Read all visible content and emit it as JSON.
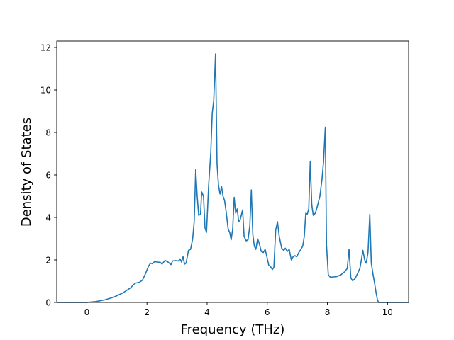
{
  "chart_data": {
    "type": "line",
    "title": "",
    "xlabel": "Frequency (THz)",
    "ylabel": "Density of States",
    "xlim": [
      -1.0,
      10.7
    ],
    "ylim": [
      0,
      12.3
    ],
    "xticks": [
      0,
      2,
      4,
      6,
      8,
      10
    ],
    "yticks": [
      0,
      2,
      4,
      6,
      8,
      10,
      12
    ],
    "grid": false,
    "legend": "none",
    "series": [
      {
        "name": "",
        "color": "#1f77b4",
        "points": [
          [
            -1.0,
            0.0
          ],
          [
            -0.5,
            0.0
          ],
          [
            0.0,
            0.0
          ],
          [
            0.3,
            0.04
          ],
          [
            0.6,
            0.12
          ],
          [
            0.9,
            0.25
          ],
          [
            1.2,
            0.45
          ],
          [
            1.45,
            0.68
          ],
          [
            1.6,
            0.9
          ],
          [
            1.75,
            0.95
          ],
          [
            1.85,
            1.05
          ],
          [
            1.95,
            1.35
          ],
          [
            2.05,
            1.7
          ],
          [
            2.12,
            1.85
          ],
          [
            2.18,
            1.82
          ],
          [
            2.25,
            1.92
          ],
          [
            2.35,
            1.9
          ],
          [
            2.45,
            1.88
          ],
          [
            2.5,
            1.8
          ],
          [
            2.6,
            1.98
          ],
          [
            2.7,
            1.9
          ],
          [
            2.8,
            1.78
          ],
          [
            2.85,
            1.95
          ],
          [
            2.95,
            1.97
          ],
          [
            3.05,
            1.95
          ],
          [
            3.1,
            2.05
          ],
          [
            3.15,
            1.9
          ],
          [
            3.2,
            2.15
          ],
          [
            3.25,
            1.8
          ],
          [
            3.3,
            1.85
          ],
          [
            3.38,
            2.45
          ],
          [
            3.45,
            2.5
          ],
          [
            3.52,
            3.0
          ],
          [
            3.57,
            3.8
          ],
          [
            3.62,
            6.25
          ],
          [
            3.67,
            5.0
          ],
          [
            3.72,
            4.1
          ],
          [
            3.78,
            4.15
          ],
          [
            3.82,
            5.2
          ],
          [
            3.88,
            5.0
          ],
          [
            3.93,
            3.5
          ],
          [
            3.98,
            3.3
          ],
          [
            4.05,
            5.5
          ],
          [
            4.12,
            7.0
          ],
          [
            4.17,
            8.9
          ],
          [
            4.22,
            9.5
          ],
          [
            4.28,
            11.7
          ],
          [
            4.33,
            6.5
          ],
          [
            4.38,
            5.5
          ],
          [
            4.43,
            5.1
          ],
          [
            4.48,
            5.45
          ],
          [
            4.53,
            5.0
          ],
          [
            4.58,
            4.8
          ],
          [
            4.63,
            4.3
          ],
          [
            4.7,
            3.45
          ],
          [
            4.75,
            3.3
          ],
          [
            4.8,
            2.95
          ],
          [
            4.85,
            3.45
          ],
          [
            4.9,
            4.95
          ],
          [
            4.95,
            4.2
          ],
          [
            5.0,
            4.4
          ],
          [
            5.05,
            3.8
          ],
          [
            5.1,
            3.9
          ],
          [
            5.18,
            4.35
          ],
          [
            5.23,
            3.1
          ],
          [
            5.3,
            2.9
          ],
          [
            5.36,
            2.95
          ],
          [
            5.42,
            3.6
          ],
          [
            5.47,
            5.3
          ],
          [
            5.52,
            3.2
          ],
          [
            5.57,
            2.65
          ],
          [
            5.62,
            2.5
          ],
          [
            5.68,
            3.0
          ],
          [
            5.73,
            2.8
          ],
          [
            5.8,
            2.4
          ],
          [
            5.87,
            2.35
          ],
          [
            5.93,
            2.5
          ],
          [
            5.98,
            2.2
          ],
          [
            6.05,
            1.75
          ],
          [
            6.1,
            1.7
          ],
          [
            6.17,
            1.55
          ],
          [
            6.22,
            1.65
          ],
          [
            6.28,
            3.4
          ],
          [
            6.34,
            3.8
          ],
          [
            6.4,
            3.1
          ],
          [
            6.48,
            2.55
          ],
          [
            6.55,
            2.45
          ],
          [
            6.6,
            2.55
          ],
          [
            6.67,
            2.4
          ],
          [
            6.73,
            2.5
          ],
          [
            6.8,
            2.0
          ],
          [
            6.86,
            2.15
          ],
          [
            6.92,
            2.2
          ],
          [
            6.98,
            2.15
          ],
          [
            7.05,
            2.35
          ],
          [
            7.12,
            2.5
          ],
          [
            7.18,
            2.65
          ],
          [
            7.23,
            3.1
          ],
          [
            7.28,
            4.2
          ],
          [
            7.33,
            4.15
          ],
          [
            7.38,
            4.4
          ],
          [
            7.43,
            6.65
          ],
          [
            7.48,
            4.6
          ],
          [
            7.53,
            4.1
          ],
          [
            7.6,
            4.2
          ],
          [
            7.68,
            4.6
          ],
          [
            7.75,
            5.0
          ],
          [
            7.82,
            5.8
          ],
          [
            7.87,
            6.6
          ],
          [
            7.93,
            8.25
          ],
          [
            7.97,
            2.7
          ],
          [
            8.03,
            1.3
          ],
          [
            8.1,
            1.18
          ],
          [
            8.2,
            1.2
          ],
          [
            8.32,
            1.22
          ],
          [
            8.45,
            1.3
          ],
          [
            8.58,
            1.45
          ],
          [
            8.66,
            1.6
          ],
          [
            8.72,
            2.5
          ],
          [
            8.78,
            1.15
          ],
          [
            8.84,
            1.02
          ],
          [
            8.92,
            1.12
          ],
          [
            9.0,
            1.35
          ],
          [
            9.08,
            1.6
          ],
          [
            9.13,
            2.0
          ],
          [
            9.18,
            2.45
          ],
          [
            9.24,
            2.0
          ],
          [
            9.29,
            1.85
          ],
          [
            9.35,
            2.35
          ],
          [
            9.41,
            4.15
          ],
          [
            9.46,
            1.85
          ],
          [
            9.52,
            1.3
          ],
          [
            9.57,
            0.9
          ],
          [
            9.62,
            0.45
          ],
          [
            9.66,
            0.15
          ],
          [
            9.7,
            0.0
          ],
          [
            10.0,
            0.0
          ],
          [
            10.4,
            0.0
          ],
          [
            10.7,
            0.0
          ]
        ]
      }
    ]
  }
}
